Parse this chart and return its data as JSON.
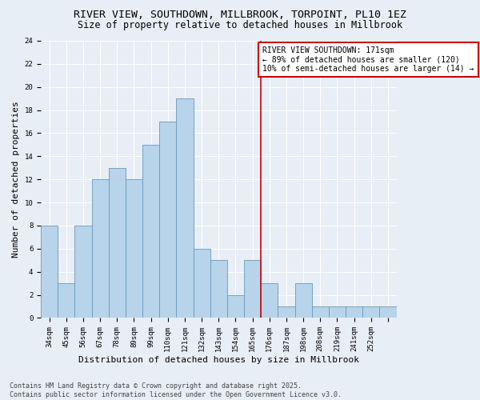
{
  "title": "RIVER VIEW, SOUTHDOWN, MILLBROOK, TORPOINT, PL10 1EZ",
  "subtitle": "Size of property relative to detached houses in Millbrook",
  "xlabel": "Distribution of detached houses by size in Millbrook",
  "ylabel": "Number of detached properties",
  "bar_values": [
    8,
    3,
    8,
    12,
    13,
    12,
    15,
    17,
    19,
    6,
    5,
    2,
    5,
    3,
    1,
    3,
    1,
    1,
    1,
    1,
    1
  ],
  "bar_labels": [
    "34sqm",
    "45sqm",
    "56sqm",
    "67sqm",
    "78sqm",
    "89sqm",
    "99sqm",
    "110sqm",
    "121sqm",
    "132sqm",
    "143sqm",
    "154sqm",
    "165sqm",
    "176sqm",
    "187sqm",
    "198sqm",
    "208sqm",
    "219sqm",
    "241sqm",
    "252sqm",
    ""
  ],
  "bar_color": "#b8d4ea",
  "bar_edge_color": "#6699bb",
  "background_color": "#e8eef5",
  "grid_color": "#ffffff",
  "vline_color": "#cc0000",
  "vline_pos": 12.5,
  "annotation_title": "RIVER VIEW SOUTHDOWN: 171sqm",
  "annotation_line1": "← 89% of detached houses are smaller (120)",
  "annotation_line2": "10% of semi-detached houses are larger (14) →",
  "annotation_box_color": "#ffffff",
  "annotation_border_color": "#cc0000",
  "ylim": [
    0,
    24
  ],
  "yticks": [
    0,
    2,
    4,
    6,
    8,
    10,
    12,
    14,
    16,
    18,
    20,
    22,
    24
  ],
  "footer_line1": "Contains HM Land Registry data © Crown copyright and database right 2025.",
  "footer_line2": "Contains public sector information licensed under the Open Government Licence v3.0.",
  "title_fontsize": 9.5,
  "subtitle_fontsize": 8.5,
  "xlabel_fontsize": 8,
  "ylabel_fontsize": 8,
  "tick_fontsize": 6.5,
  "annotation_fontsize": 7,
  "footer_fontsize": 6
}
